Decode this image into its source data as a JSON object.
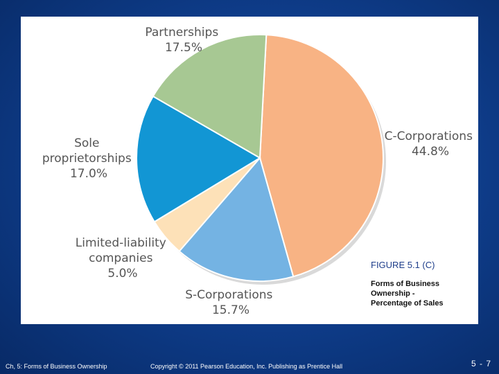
{
  "chart_data": {
    "type": "pie",
    "title": "FIGURE 5.1 (C)",
    "subtitle": "Forms of Business Ownership - Percentage of Sales",
    "slices": [
      {
        "name": "C-Corporations",
        "value": 44.8,
        "value_label": "44.8%",
        "color": "#f8b384"
      },
      {
        "name": "S-Corporations",
        "value": 15.7,
        "value_label": "15.7%",
        "color": "#74b3e3"
      },
      {
        "name": "Limited-liability companies",
        "value": 5.0,
        "value_label": "5.0%",
        "color": "#fde1b8"
      },
      {
        "name": "Sole proprietorships",
        "value": 17.0,
        "value_label": "17.0%",
        "color": "#1296d4"
      },
      {
        "name": "Partnerships",
        "value": 17.5,
        "value_label": "17.5%",
        "color": "#a7c893"
      }
    ]
  },
  "labels": {
    "partnerships": {
      "line1": "Partnerships",
      "line2": "17.5%"
    },
    "c_corporations": {
      "line1": "C-Corporations",
      "line2": "44.8%"
    },
    "sole": {
      "line1": "Sole",
      "line2": "proprietorships",
      "line3": "17.0%"
    },
    "llc": {
      "line1": "Limited-liability",
      "line2": "companies",
      "line3": "5.0%"
    },
    "s_corporations": {
      "line1": "S-Corporations",
      "line2": "15.7%"
    }
  },
  "figure": {
    "title": "FIGURE 5.1 (C)",
    "subtitle_line1": "Forms of Business",
    "subtitle_line2": "Ownership -",
    "subtitle_line3": "Percentage of Sales"
  },
  "footer": {
    "left": "Ch, 5: Forms of Business Ownership",
    "copyright_symbol": "©",
    "middle_text": "2011 Pearson Education, Inc. Publishing as Prentice Hall",
    "copyright_prefix": "Copyright",
    "page": "5 - 7"
  }
}
